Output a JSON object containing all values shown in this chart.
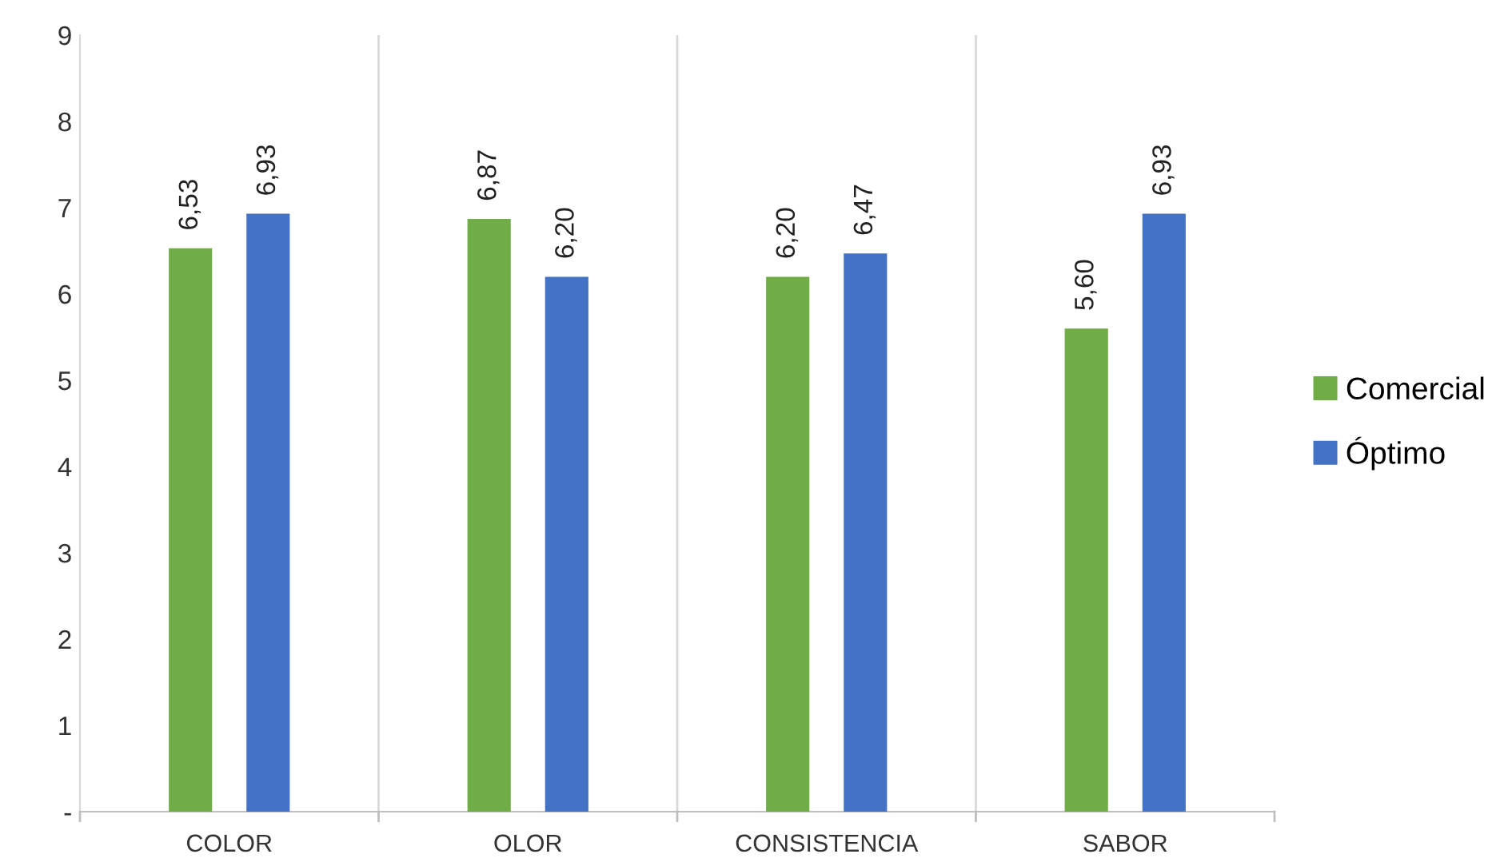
{
  "chart_data": {
    "type": "bar",
    "categories": [
      "COLOR",
      "OLOR",
      "CONSISTENCIA",
      "SABOR"
    ],
    "series": [
      {
        "name": "Comercial",
        "color": "#70ad47",
        "values": [
          6.53,
          6.87,
          6.2,
          5.6
        ],
        "value_labels": [
          "6,53",
          "6,87",
          "6,20",
          "5,60"
        ]
      },
      {
        "name": "Óptimo",
        "color": "#4472c4",
        "values": [
          6.93,
          6.2,
          6.47,
          6.93
        ],
        "value_labels": [
          "6,93",
          "6,20",
          "6,47",
          "6,93"
        ]
      }
    ],
    "ylim": [
      0,
      9
    ],
    "yticks": [
      {
        "value": 0,
        "label": "-"
      },
      1,
      2,
      3,
      4,
      5,
      6,
      7,
      8,
      9
    ],
    "grid": "x",
    "legend": "right"
  }
}
